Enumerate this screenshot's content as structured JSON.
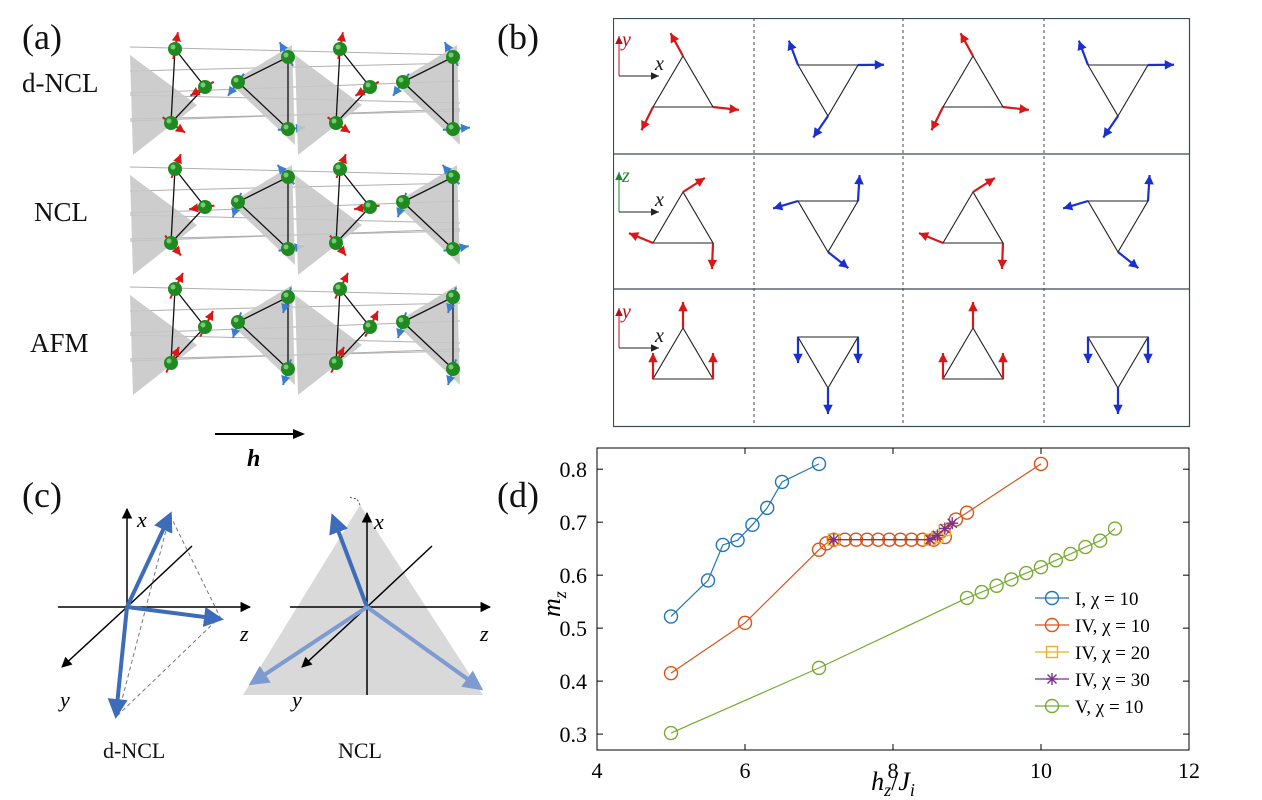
{
  "panels": {
    "a": {
      "letter": "(a)",
      "rows": [
        "d-NCL",
        "NCL",
        "AFM"
      ],
      "field_label": "h"
    },
    "b": {
      "letter": "(b)",
      "axes_rows": [
        {
          "v": "y",
          "h": "x",
          "vcolor": "#b01020"
        },
        {
          "v": "z",
          "h": "x",
          "vcolor": "#1a8a30"
        },
        {
          "v": "y",
          "h": "x",
          "vcolor": "#b01020"
        }
      ]
    },
    "c": {
      "letter": "(c)",
      "captions": [
        "d-NCL",
        "NCL"
      ],
      "axis_labels": {
        "x": "x",
        "y": "y",
        "z": "z"
      }
    },
    "d": {
      "letter": "(d)"
    }
  },
  "colors": {
    "red_spin": "#d81818",
    "blue_spin": "#1a2fd0",
    "light_blue_spin": "#3c7dd0",
    "sphere": "#1f8a1f",
    "plane": "#c8c8c8",
    "series_I": "#1f77b4",
    "series_IV": "#d95319",
    "series_IV20": "#edb120",
    "series_IV30": "#7e2f8e",
    "series_V": "#77ac30"
  },
  "chart_data": {
    "type": "line",
    "xlabel": "h_z/J_i",
    "ylabel": "m_z",
    "xlim": [
      4,
      12
    ],
    "ylim": [
      0.27,
      0.84
    ],
    "xticks": [
      4,
      6,
      8,
      10,
      12
    ],
    "yticks": [
      0.3,
      0.4,
      0.5,
      0.6,
      0.7,
      0.8
    ],
    "series": [
      {
        "name": "I, χ = 10",
        "marker": "circle",
        "color": "#1f77b4",
        "x": [
          5.0,
          5.5,
          5.7,
          5.9,
          6.1,
          6.3,
          6.5,
          7.0
        ],
        "y": [
          0.522,
          0.59,
          0.657,
          0.666,
          0.695,
          0.727,
          0.776,
          0.81
        ]
      },
      {
        "name": "IV, χ = 10",
        "marker": "circle",
        "color": "#d95319",
        "x": [
          5.0,
          6.0,
          7.0,
          7.1,
          7.2,
          7.35,
          7.5,
          7.65,
          7.8,
          7.95,
          8.1,
          8.25,
          8.4,
          8.55,
          8.7,
          8.85,
          9.0,
          10.0
        ],
        "y": [
          0.415,
          0.51,
          0.648,
          0.66,
          0.667,
          0.667,
          0.667,
          0.667,
          0.667,
          0.667,
          0.667,
          0.667,
          0.667,
          0.667,
          0.672,
          0.705,
          0.718,
          0.81
        ]
      },
      {
        "name": "IV, χ = 20",
        "marker": "square",
        "color": "#edb120",
        "x": [
          7.2,
          8.5,
          8.6,
          8.7
        ],
        "y": [
          0.667,
          0.667,
          0.672,
          0.685
        ]
      },
      {
        "name": "IV, χ = 30",
        "marker": "star",
        "color": "#7e2f8e",
        "x": [
          7.2,
          8.5,
          8.6,
          8.7,
          8.8
        ],
        "y": [
          0.667,
          0.667,
          0.675,
          0.688,
          0.698
        ]
      },
      {
        "name": "V, χ = 10",
        "marker": "circle",
        "color": "#77ac30",
        "x": [
          5.0,
          7.0,
          9.0,
          9.2,
          9.4,
          9.6,
          9.8,
          10.0,
          10.2,
          10.4,
          10.6,
          10.8,
          11.0
        ],
        "y": [
          0.302,
          0.425,
          0.557,
          0.568,
          0.58,
          0.592,
          0.604,
          0.615,
          0.628,
          0.64,
          0.653,
          0.665,
          0.688
        ]
      }
    ],
    "legend_position": "bottom-right",
    "grid": false
  }
}
